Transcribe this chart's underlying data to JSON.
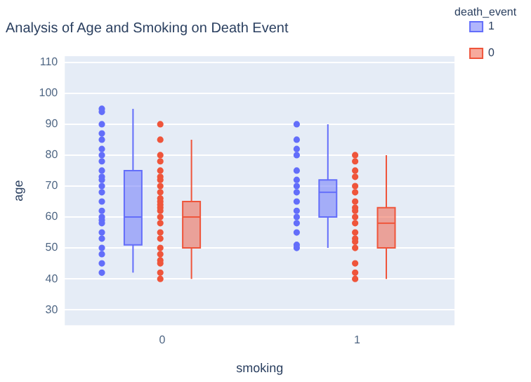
{
  "chart_data": {
    "type": "box",
    "title": "Analysis of Age and Smoking on Death Event",
    "xlabel": "smoking",
    "ylabel": "age",
    "legend_title": "death_event",
    "legend": "top right",
    "grid": "y",
    "categories": [
      "0",
      "1"
    ],
    "ylim": [
      25,
      112
    ],
    "yticks": [
      30,
      40,
      50,
      60,
      70,
      80,
      90,
      100,
      110
    ],
    "series": [
      {
        "name": "1",
        "color": "#636efa",
        "boxes": [
          {
            "low": 42,
            "q1": 51,
            "median": 60,
            "q3": 75,
            "high": 95
          },
          {
            "low": 50,
            "q1": 60,
            "median": 68,
            "q3": 72,
            "high": 90
          }
        ]
      },
      {
        "name": "0",
        "color": "#ef553b",
        "boxes": [
          {
            "low": 40,
            "q1": 50,
            "median": 60,
            "q3": 65,
            "high": 85
          },
          {
            "low": 40,
            "q1": 50,
            "median": 58,
            "q3": 63,
            "high": 80
          }
        ]
      },
      {
        "type": "scatter",
        "color": "#636efa",
        "x": [
          "0",
          "0",
          "0",
          "0",
          "0",
          "0",
          "0",
          "0",
          "0",
          "0",
          "0",
          "0",
          "0",
          "0",
          "0",
          "0",
          "0",
          "0",
          "0",
          "0",
          "0",
          "0",
          "0",
          "0",
          "1",
          "1",
          "1",
          "1",
          "1",
          "1",
          "1",
          "1",
          "1",
          "1",
          "1",
          "1",
          "1",
          "1",
          "1"
        ],
        "values": [
          95,
          94,
          90,
          87,
          85,
          82,
          80,
          78,
          75,
          73,
          72,
          70,
          68,
          65,
          62,
          60,
          59,
          58,
          55,
          53,
          50,
          48,
          45,
          42,
          90,
          85,
          82,
          80,
          75,
          72,
          70,
          68,
          65,
          62,
          60,
          58,
          55,
          51,
          50
        ]
      },
      {
        "type": "scatter",
        "color": "#ef553b",
        "x": [
          "0",
          "0",
          "0",
          "0",
          "0",
          "0",
          "0",
          "0",
          "0",
          "0",
          "0",
          "0",
          "0",
          "0",
          "0",
          "0",
          "0",
          "0",
          "0",
          "0",
          "0",
          "0",
          "0",
          "0",
          "1",
          "1",
          "1",
          "1",
          "1",
          "1",
          "1",
          "1",
          "1",
          "1",
          "1",
          "1",
          "1",
          "1",
          "1",
          "1",
          "1",
          "1"
        ],
        "values": [
          90,
          85,
          80,
          78,
          75,
          73,
          72,
          70,
          68,
          66,
          65,
          64,
          63,
          62,
          60,
          58,
          55,
          53,
          50,
          48,
          46,
          45,
          42,
          40,
          80,
          78,
          75,
          73,
          70,
          68,
          65,
          63,
          62,
          60,
          58,
          55,
          53,
          52,
          50,
          45,
          42,
          40
        ]
      }
    ]
  }
}
